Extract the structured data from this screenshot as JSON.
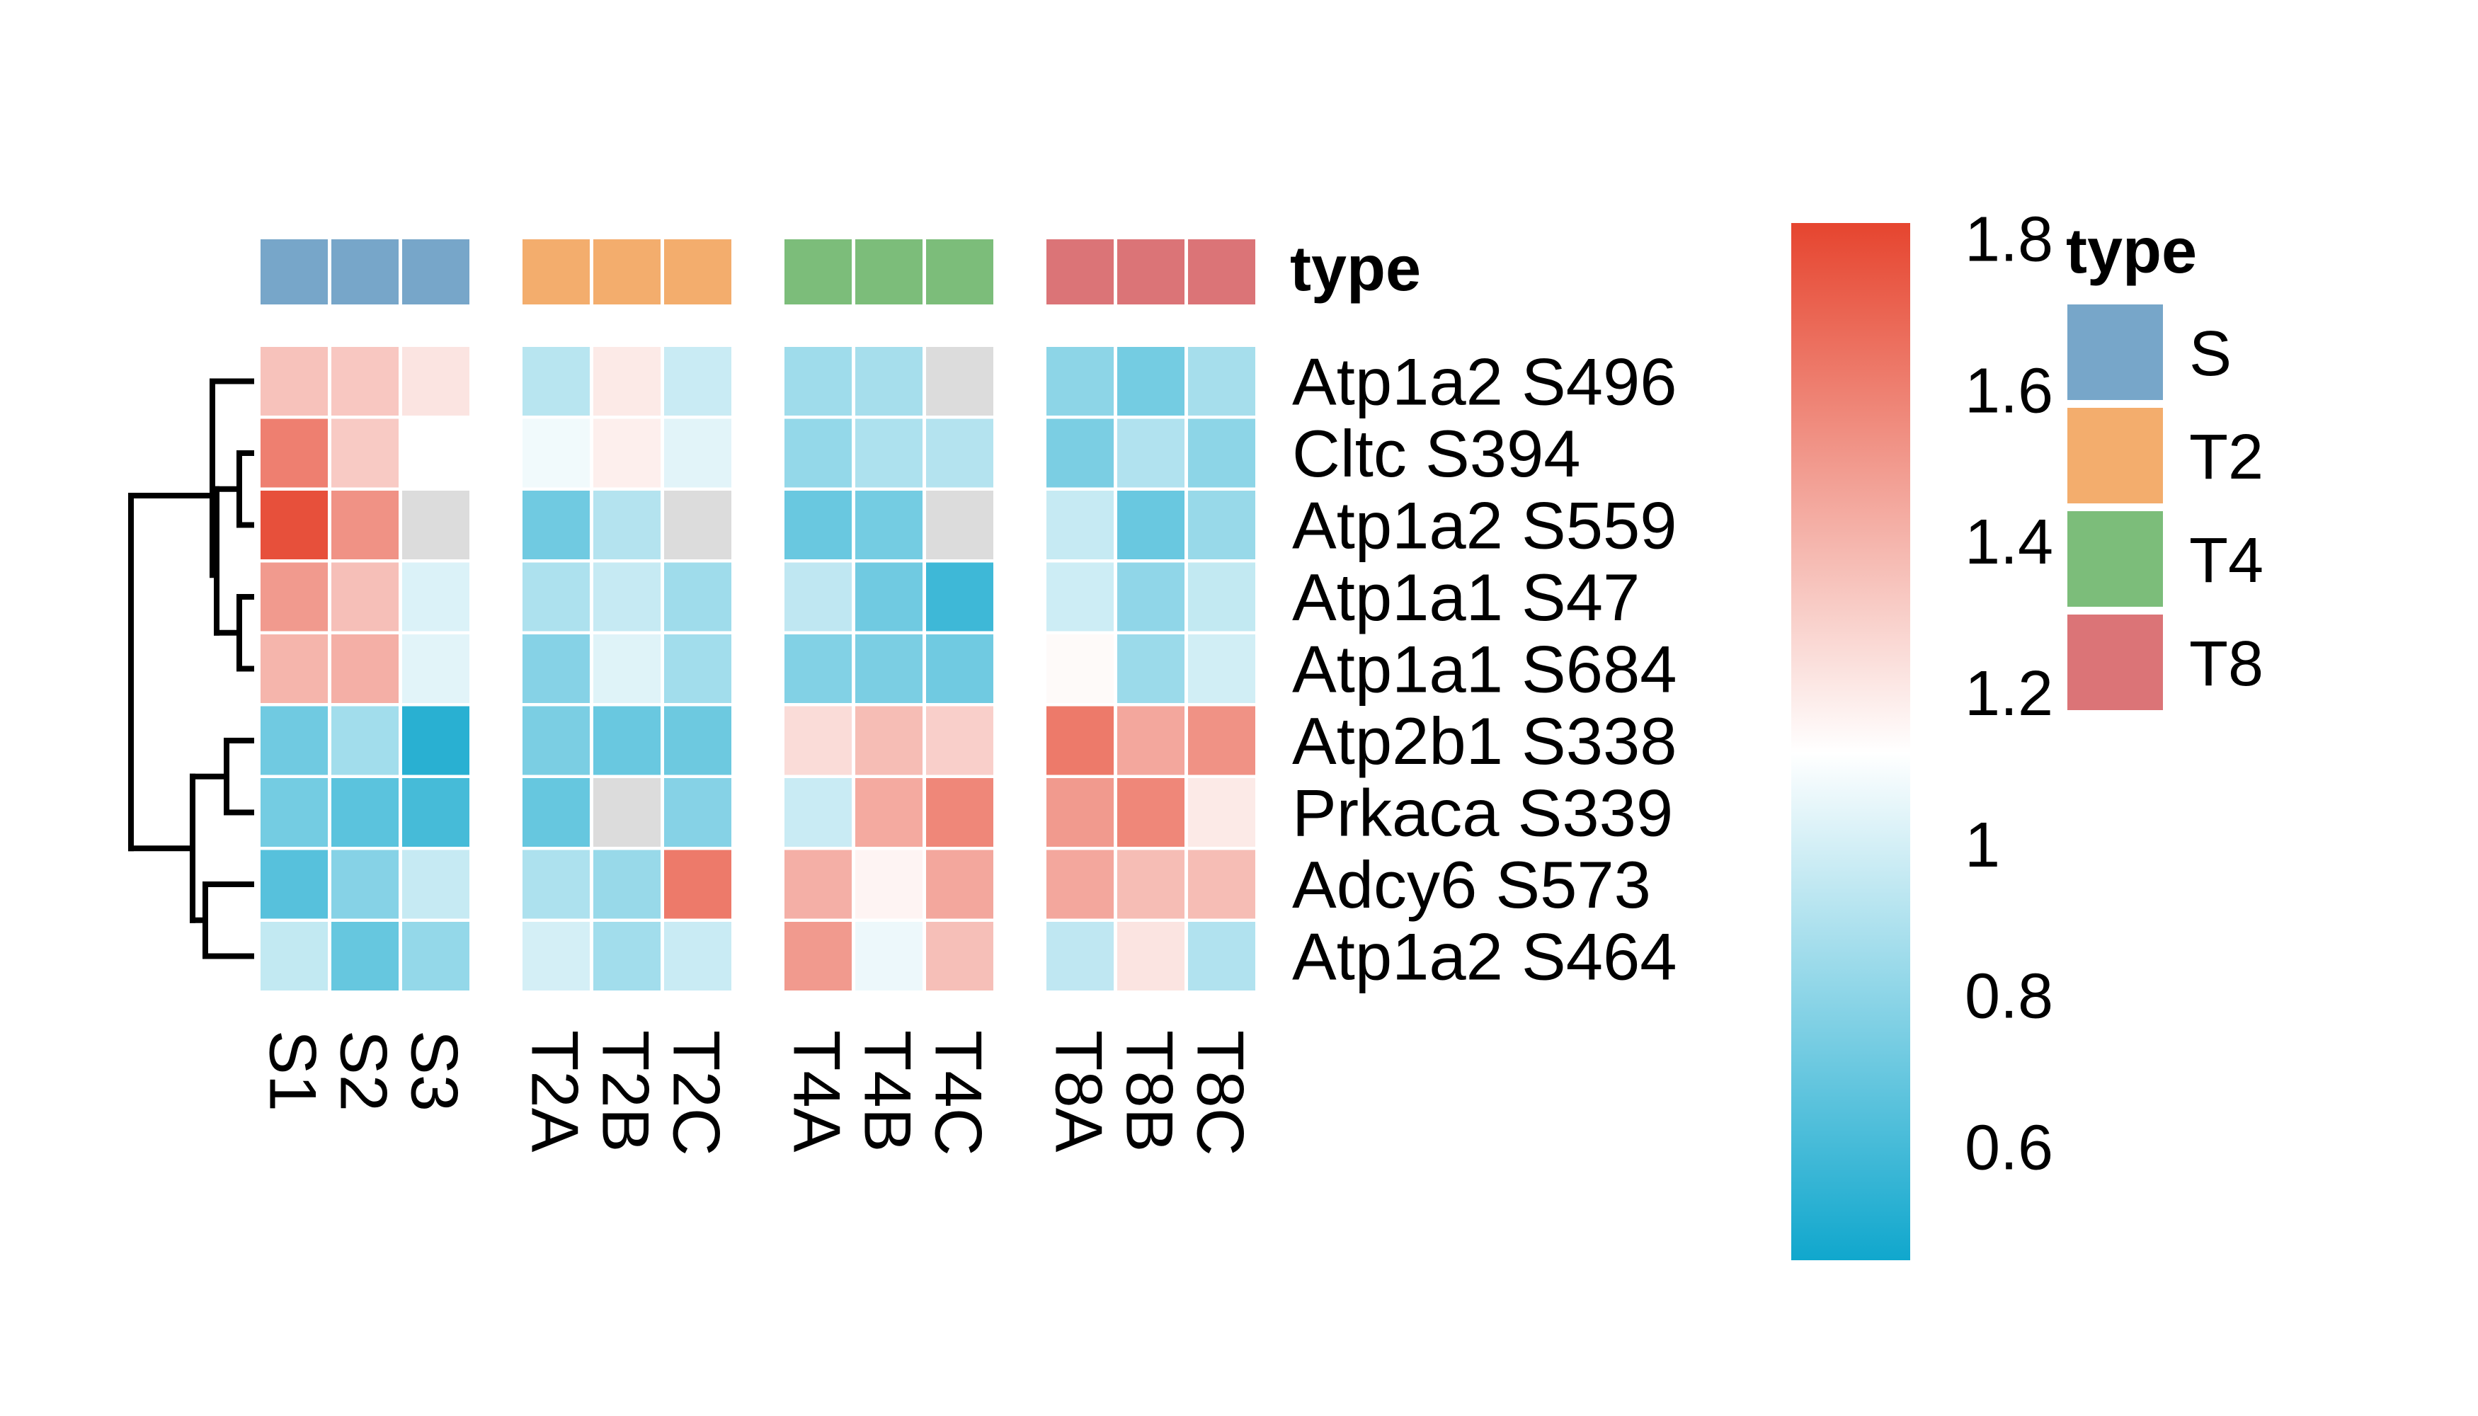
{
  "chart_data": {
    "type": "heatmap",
    "columns": [
      "S1",
      "S2",
      "S3",
      "T2A",
      "T2B",
      "T2C",
      "T4A",
      "T4B",
      "T4C",
      "T8A",
      "T8B",
      "T8C"
    ],
    "column_groups": [
      "S",
      "S",
      "S",
      "T2",
      "T2",
      "T2",
      "T4",
      "T4",
      "T4",
      "T8",
      "T8",
      "T8"
    ],
    "rows": [
      "Atp1a2 S496",
      "Cltc S394",
      "Atp1a2 S559",
      "Atp1a1 S47",
      "Atp1a1 S684",
      "Atp2b1 S338",
      "Prkaca S339",
      "Adcy6 S573",
      "Atp1a2 S464"
    ],
    "values": [
      [
        1.35,
        1.33,
        1.22,
        0.92,
        1.2,
        0.97,
        0.85,
        0.87,
        null,
        0.8,
        0.73,
        0.87
      ],
      [
        1.6,
        1.32,
        1.12,
        1.08,
        1.18,
        1.04,
        0.82,
        0.89,
        0.91,
        0.75,
        0.9,
        0.8
      ],
      [
        1.78,
        1.53,
        null,
        0.72,
        0.91,
        null,
        0.7,
        0.73,
        null,
        0.96,
        0.7,
        0.83
      ],
      [
        1.5,
        1.36,
        1.02,
        0.89,
        0.96,
        0.85,
        0.94,
        0.72,
        0.58,
        0.98,
        0.81,
        0.95
      ],
      [
        1.4,
        1.42,
        1.04,
        0.78,
        1.03,
        0.86,
        0.77,
        0.75,
        0.72,
        1.14,
        0.84,
        0.99
      ],
      [
        0.72,
        0.86,
        0.52,
        0.75,
        0.7,
        0.71,
        1.25,
        1.37,
        1.3,
        1.62,
        1.45,
        1.53
      ],
      [
        0.73,
        0.66,
        0.6,
        0.69,
        null,
        0.78,
        0.97,
        1.44,
        1.57,
        1.5,
        1.57,
        1.2
      ],
      [
        0.65,
        0.78,
        0.96,
        0.89,
        0.83,
        1.62,
        1.42,
        1.16,
        1.45,
        1.45,
        1.37,
        1.37
      ],
      [
        0.95,
        0.69,
        0.82,
        1.0,
        0.86,
        0.97,
        1.5,
        1.07,
        1.36,
        0.94,
        1.22,
        0.9
      ]
    ],
    "missing_color": "#dcdcdc",
    "color_scale": {
      "min": 0.45,
      "max": 1.82,
      "mid": 1.12,
      "low_color": "#10a7cd",
      "mid_color": "#ffffff",
      "high_color": "#e6452f",
      "ticks": [
        0.6,
        0.8,
        1,
        1.2,
        1.4,
        1.6,
        1.8
      ],
      "tick_labels": [
        "0.6",
        "0.8",
        "1",
        "1.2",
        "1.4",
        "1.6",
        "1.8"
      ]
    },
    "annotation_title": "type",
    "legend": {
      "title": "type",
      "entries": [
        {
          "label": "S",
          "color": "#77a6c9"
        },
        {
          "label": "T2",
          "color": "#f3ad6d"
        },
        {
          "label": "T4",
          "color": "#7cbd7a"
        },
        {
          "label": "T8",
          "color": "#db7477"
        }
      ]
    },
    "row_dendrogram": true
  }
}
